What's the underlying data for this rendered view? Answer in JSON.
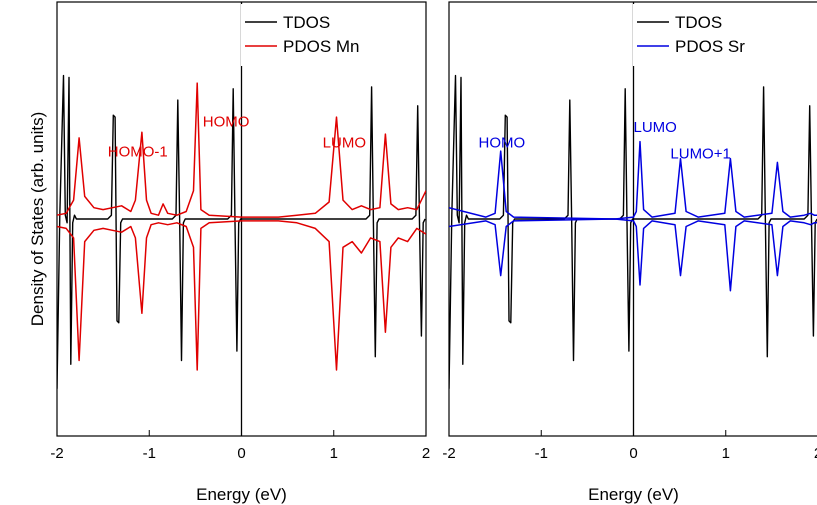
{
  "chart_data": {
    "type": "line",
    "ylabel": "Density of States (arb. units)",
    "panels": [
      {
        "id": "mn",
        "xlabel": "Energy (eV)",
        "xlim": [
          -2,
          2
        ],
        "ylim": [
          -1.15,
          1.15
        ],
        "x_ticks": [
          -2,
          -1,
          0,
          1,
          2
        ],
        "x_tick_labels": [
          "-2",
          "-1",
          "0",
          "1",
          "2"
        ],
        "legend": {
          "placement": "top-right",
          "entries": [
            "TDOS",
            "PDOS Mn"
          ]
        },
        "series": [
          {
            "name": "TDOS",
            "color": "#000000",
            "x": [
              -2.0,
              -1.97,
              -1.93,
              -1.91,
              -1.89,
              -1.87,
              -1.85,
              -1.83,
              -1.81,
              -1.79,
              -1.75,
              -1.45,
              -1.41,
              -1.39,
              -1.37,
              -1.35,
              -1.33,
              -1.31,
              -1.29,
              -1.25,
              -0.75,
              -0.71,
              -0.69,
              -0.67,
              -0.65,
              -0.63,
              -0.61,
              -0.55,
              -0.15,
              -0.11,
              -0.09,
              -0.07,
              -0.05,
              -0.03,
              -0.01,
              0.05,
              1.35,
              1.39,
              1.41,
              1.43,
              1.45,
              1.47,
              1.49,
              1.55,
              1.85,
              1.89,
              1.91,
              1.93,
              1.95,
              1.97,
              1.99
            ],
            "y": [
              -0.9,
              0.02,
              0.76,
              0.02,
              -0.02,
              0.75,
              -0.77,
              -0.02,
              0.02,
              0.0,
              0.0,
              0.0,
              0.02,
              0.55,
              0.54,
              -0.54,
              -0.55,
              -0.02,
              0.0,
              0.0,
              0.0,
              0.02,
              0.63,
              -0.02,
              -0.75,
              -0.02,
              0.0,
              0.0,
              0.0,
              0.02,
              0.69,
              -0.02,
              -0.7,
              -0.02,
              0.0,
              0.0,
              0.0,
              0.02,
              0.7,
              -0.02,
              -0.73,
              -0.02,
              0.0,
              0.0,
              0.0,
              0.02,
              0.6,
              -0.02,
              -0.62,
              -0.02,
              0.0
            ]
          },
          {
            "name": "PDOS Mn",
            "color": "#e00000",
            "x": [
              -2.0,
              -1.9,
              -1.82,
              -1.76,
              -1.7,
              -1.6,
              -1.5,
              -1.4,
              -1.3,
              -1.2,
              -1.15,
              -1.08,
              -1.03,
              -0.98,
              -0.9,
              -0.85,
              -0.8,
              -0.7,
              -0.6,
              -0.52,
              -0.48,
              -0.44,
              -0.35,
              0.0,
              0.4,
              0.6,
              0.8,
              0.95,
              1.03,
              1.1,
              1.2,
              1.3,
              1.4,
              1.5,
              1.56,
              1.62,
              1.7,
              1.8,
              1.9,
              2.0
            ],
            "y": [
              0.02,
              0.03,
              0.1,
              0.43,
              0.12,
              0.06,
              0.05,
              0.06,
              0.07,
              0.04,
              0.1,
              0.46,
              0.1,
              0.03,
              0.02,
              0.08,
              0.03,
              0.02,
              0.04,
              0.15,
              0.72,
              0.05,
              0.02,
              0.01,
              0.01,
              0.02,
              0.03,
              0.09,
              0.54,
              0.1,
              0.05,
              0.07,
              0.05,
              0.06,
              0.45,
              0.08,
              0.05,
              0.06,
              0.05,
              0.15
            ]
          },
          {
            "name": "PDOS Mn",
            "color": "#e00000",
            "x": [
              -2.0,
              -1.9,
              -1.82,
              -1.76,
              -1.7,
              -1.6,
              -1.5,
              -1.4,
              -1.3,
              -1.2,
              -1.15,
              -1.08,
              -1.03,
              -0.98,
              -0.9,
              -0.8,
              -0.7,
              -0.6,
              -0.52,
              -0.48,
              -0.44,
              -0.35,
              0.0,
              0.4,
              0.6,
              0.8,
              0.95,
              1.03,
              1.1,
              1.2,
              1.3,
              1.4,
              1.5,
              1.56,
              1.62,
              1.7,
              1.8,
              1.9,
              2.0
            ],
            "y": [
              -0.04,
              -0.05,
              -0.1,
              -0.75,
              -0.12,
              -0.06,
              -0.05,
              -0.06,
              -0.07,
              -0.04,
              -0.1,
              -0.5,
              -0.1,
              -0.03,
              -0.02,
              -0.03,
              -0.02,
              -0.04,
              -0.15,
              -0.8,
              -0.05,
              -0.02,
              -0.01,
              -0.01,
              -0.02,
              -0.05,
              -0.12,
              -0.8,
              -0.15,
              -0.12,
              -0.18,
              -0.1,
              -0.12,
              -0.6,
              -0.15,
              -0.1,
              -0.12,
              -0.05,
              -0.08
            ]
          }
        ],
        "annotations": [
          {
            "text": "HOMO-1",
            "x": -1.45,
            "y": 0.33,
            "color": "#e00000"
          },
          {
            "text": "HOMO",
            "x": -0.42,
            "y": 0.49,
            "color": "#e00000"
          },
          {
            "text": "LUMO",
            "x": 0.88,
            "y": 0.38,
            "color": "#e00000"
          }
        ]
      },
      {
        "id": "sr",
        "xlabel": "Energy (eV)",
        "xlim": [
          -2,
          2
        ],
        "ylim": [
          -1.15,
          1.15
        ],
        "x_ticks": [
          -2,
          -1,
          0,
          1,
          2
        ],
        "x_tick_labels": [
          "-2",
          "-1",
          "0",
          "1",
          "2"
        ],
        "legend": {
          "placement": "top-right",
          "entries": [
            "TDOS",
            "PDOS Sr"
          ]
        },
        "series": [
          {
            "name": "TDOS",
            "color": "#000000",
            "x": [
              -2.0,
              -1.97,
              -1.93,
              -1.91,
              -1.89,
              -1.87,
              -1.85,
              -1.83,
              -1.81,
              -1.79,
              -1.75,
              -1.45,
              -1.41,
              -1.39,
              -1.37,
              -1.35,
              -1.33,
              -1.31,
              -1.29,
              -1.25,
              -0.75,
              -0.71,
              -0.69,
              -0.67,
              -0.65,
              -0.63,
              -0.61,
              -0.55,
              -0.15,
              -0.11,
              -0.09,
              -0.07,
              -0.05,
              -0.03,
              -0.01,
              0.05,
              1.35,
              1.39,
              1.41,
              1.43,
              1.45,
              1.47,
              1.49,
              1.55,
              1.85,
              1.89,
              1.91,
              1.93,
              1.95,
              1.97,
              1.99
            ],
            "y": [
              -0.9,
              0.02,
              0.76,
              0.02,
              -0.02,
              0.75,
              -0.77,
              -0.02,
              0.02,
              0.0,
              0.0,
              0.0,
              0.02,
              0.55,
              0.54,
              -0.54,
              -0.55,
              -0.02,
              0.0,
              0.0,
              0.0,
              0.02,
              0.63,
              -0.02,
              -0.75,
              -0.02,
              0.0,
              0.0,
              0.0,
              0.02,
              0.69,
              -0.02,
              -0.7,
              -0.02,
              0.0,
              0.0,
              0.0,
              0.02,
              0.7,
              -0.02,
              -0.73,
              -0.02,
              0.0,
              0.0,
              0.0,
              0.02,
              0.6,
              -0.02,
              -0.62,
              -0.02,
              0.0
            ]
          },
          {
            "name": "PDOS Sr",
            "color": "#0000e0",
            "x": [
              -2.0,
              -1.6,
              -1.5,
              -1.44,
              -1.38,
              -1.3,
              -0.2,
              0.0,
              0.03,
              0.07,
              0.11,
              0.2,
              0.45,
              0.51,
              0.57,
              0.7,
              0.99,
              1.05,
              1.11,
              1.2,
              1.5,
              1.56,
              1.62,
              1.7,
              1.85,
              1.92,
              1.96,
              2.0
            ],
            "y": [
              0.06,
              0.01,
              0.03,
              0.36,
              0.04,
              0.01,
              0.0,
              0.01,
              0.04,
              0.41,
              0.05,
              0.01,
              0.03,
              0.32,
              0.04,
              0.01,
              0.03,
              0.32,
              0.04,
              0.01,
              0.03,
              0.3,
              0.04,
              0.01,
              0.02,
              0.03,
              0.02,
              0.02
            ]
          },
          {
            "name": "PDOS Sr",
            "color": "#0000e0",
            "x": [
              -2.0,
              -1.6,
              -1.5,
              -1.44,
              -1.38,
              -1.3,
              -0.2,
              0.0,
              0.03,
              0.07,
              0.11,
              0.2,
              0.45,
              0.51,
              0.57,
              0.7,
              0.99,
              1.05,
              1.11,
              1.2,
              1.5,
              1.56,
              1.62,
              1.7,
              1.85,
              1.92,
              1.96,
              2.0
            ],
            "y": [
              -0.04,
              -0.01,
              -0.03,
              -0.3,
              -0.04,
              -0.01,
              0.0,
              -0.01,
              -0.04,
              -0.35,
              -0.05,
              -0.01,
              -0.03,
              -0.3,
              -0.04,
              -0.01,
              -0.03,
              -0.38,
              -0.04,
              -0.01,
              -0.03,
              -0.3,
              -0.04,
              -0.01,
              -0.02,
              -0.03,
              -0.02,
              -0.02
            ]
          }
        ],
        "annotations": [
          {
            "text": "HOMO",
            "x": -1.68,
            "y": 0.38,
            "color": "#0000e0"
          },
          {
            "text": "LUMO",
            "x": 0.0,
            "y": 0.46,
            "color": "#0000e0"
          },
          {
            "text": "LUMO+1",
            "x": 0.4,
            "y": 0.32,
            "color": "#0000e0"
          }
        ]
      }
    ]
  }
}
